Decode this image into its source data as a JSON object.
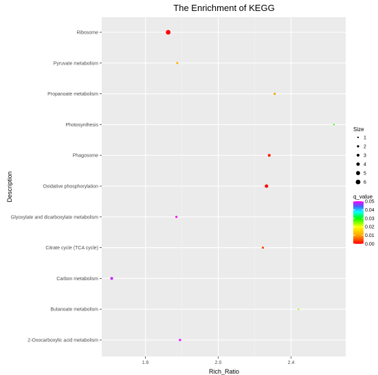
{
  "chart_data": {
    "type": "scatter",
    "title": "The Enrichment of KEGG",
    "xlabel": "Rich_Ratio",
    "ylabel": "Description",
    "xlim": [
      1.36,
      2.7
    ],
    "x_ticks": [
      1.6,
      2.0,
      2.4
    ],
    "x_tick_labels": [
      "1.6",
      "2.0",
      "2.4"
    ],
    "categories": [
      "Ribosome",
      "Pyruvate metabolism",
      "Propanoate metabolism",
      "Photosynthesis",
      "Phagosome",
      "Oxidative phosphorylation",
      "Glyoxylate and dicarboxylate metabolism",
      "Citrate cycle (TCA cycle)",
      "Carbon metabolism",
      "Butanoate metabolism",
      "2-Oxocarboxylic acid metabolism"
    ],
    "points": [
      {
        "description": "Ribosome",
        "x": 1.725,
        "size": 6,
        "q_value": 0.0
      },
      {
        "description": "Pyruvate metabolism",
        "x": 1.775,
        "size": 2,
        "q_value": 0.012
      },
      {
        "description": "Propanoate metabolism",
        "x": 2.31,
        "size": 2,
        "q_value": 0.01
      },
      {
        "description": "Photosynthesis",
        "x": 2.635,
        "size": 1,
        "q_value": 0.028
      },
      {
        "description": "Phagosome",
        "x": 2.28,
        "size": 3,
        "q_value": 0.002
      },
      {
        "description": "Oxidative phosphorylation",
        "x": 2.265,
        "size": 4,
        "q_value": 0.0
      },
      {
        "description": "Glyoxylate and dicarboxylate metabolism",
        "x": 1.77,
        "size": 2,
        "q_value": 0.05
      },
      {
        "description": "Citrate cycle (TCA cycle)",
        "x": 2.245,
        "size": 2,
        "q_value": 0.004
      },
      {
        "description": "Carbon metabolism",
        "x": 1.415,
        "size": 3,
        "q_value": 0.048
      },
      {
        "description": "Butanoate metabolism",
        "x": 2.44,
        "size": 1,
        "q_value": 0.024
      },
      {
        "description": "2-Oxocarboxylic acid metabolism",
        "x": 1.79,
        "size": 2,
        "q_value": 0.05
      }
    ],
    "legend_size": {
      "title": "Size",
      "values": [
        1,
        2,
        3,
        4,
        5,
        6
      ]
    },
    "legend_color": {
      "title": "q_value",
      "ticks": [
        0.05,
        0.04,
        0.03,
        0.02,
        0.01,
        0.0
      ],
      "tick_labels": [
        "0.05",
        "0.04",
        "0.03",
        "0.02",
        "0.01",
        "0.00"
      ],
      "range": [
        0.0,
        0.05
      ]
    },
    "panel_background": "#ebebeb",
    "grid": true,
    "legend_placement": "right"
  }
}
